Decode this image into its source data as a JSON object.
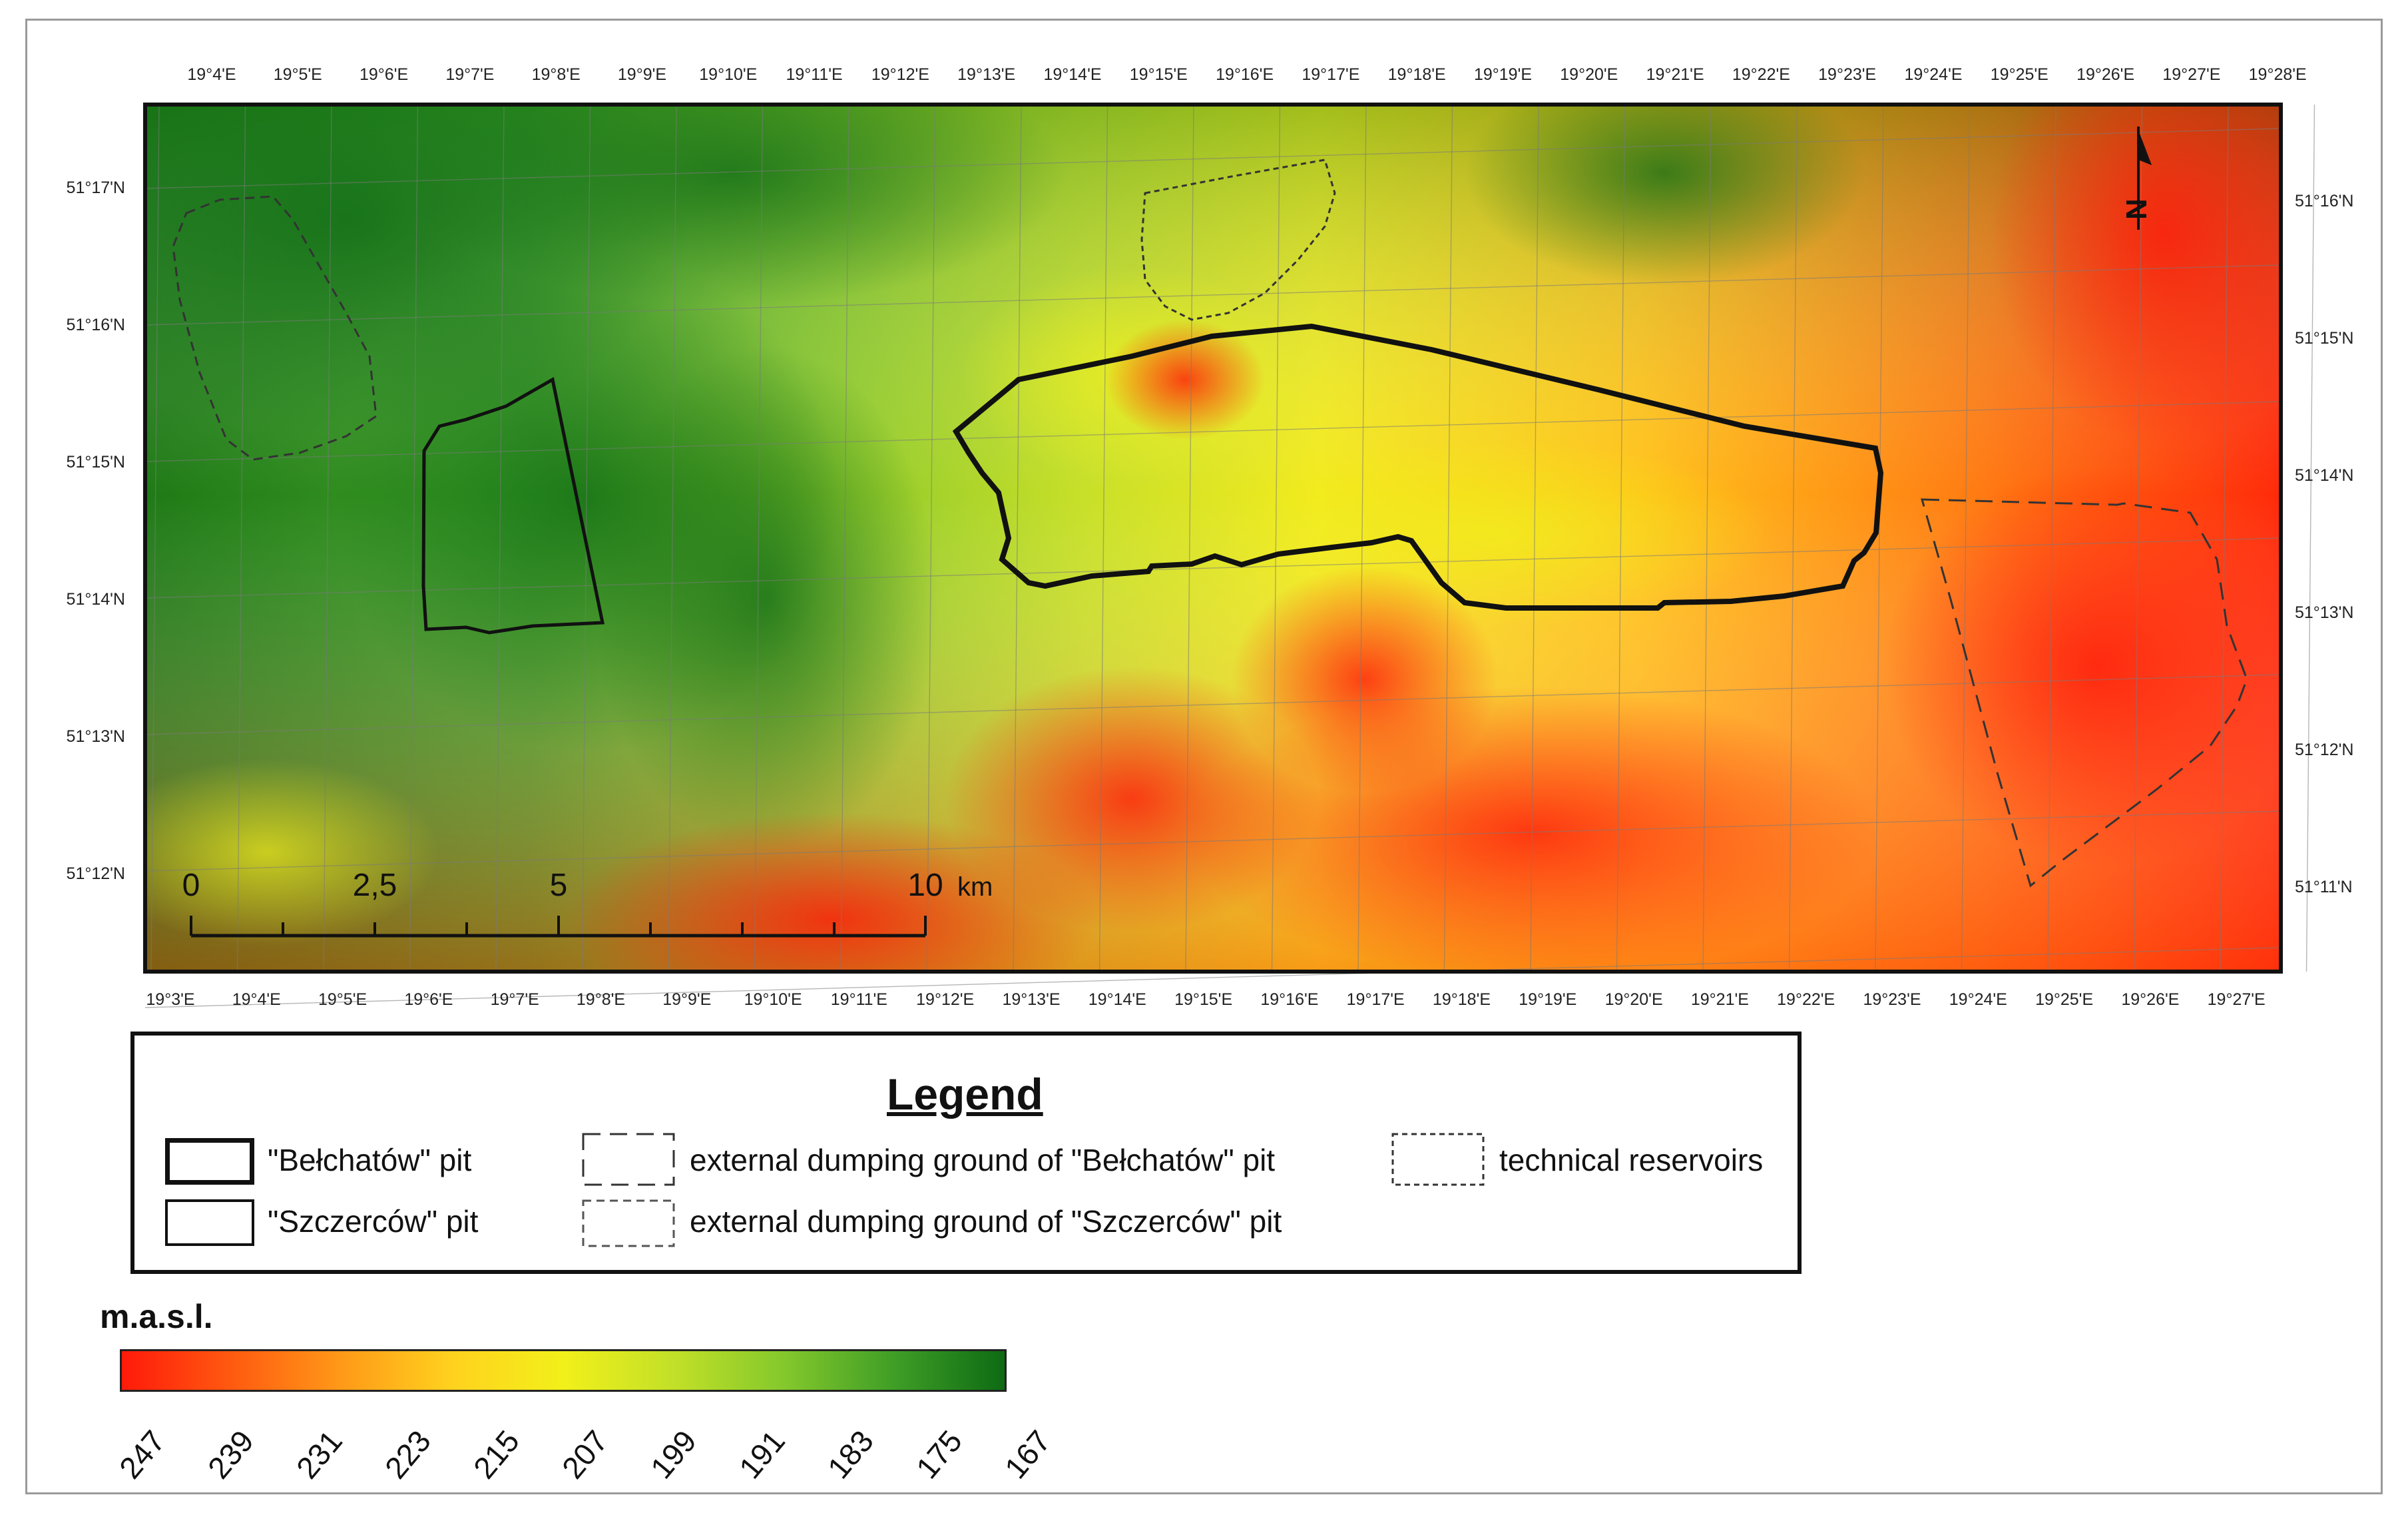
{
  "map": {
    "top_lon_labels": [
      "19°4'E",
      "19°5'E",
      "19°6'E",
      "19°7'E",
      "19°8'E",
      "19°9'E",
      "19°10'E",
      "19°11'E",
      "19°12'E",
      "19°13'E",
      "19°14'E",
      "19°15'E",
      "19°16'E",
      "19°17'E",
      "19°18'E",
      "19°19'E",
      "19°20'E",
      "19°21'E",
      "19°22'E",
      "19°23'E",
      "19°24'E",
      "19°25'E",
      "19°26'E",
      "19°27'E",
      "19°28'E"
    ],
    "bottom_lon_labels": [
      "19°3'E",
      "19°4'E",
      "19°5'E",
      "19°6'E",
      "19°7'E",
      "19°8'E",
      "19°9'E",
      "19°10'E",
      "19°11'E",
      "19°12'E",
      "19°13'E",
      "19°14'E",
      "19°15'E",
      "19°16'E",
      "19°17'E",
      "19°18'E",
      "19°19'E",
      "19°20'E",
      "19°21'E",
      "19°22'E",
      "19°23'E",
      "19°24'E",
      "19°25'E",
      "19°26'E",
      "19°27'E"
    ],
    "left_lat_labels": [
      "51°17'N",
      "51°16'N",
      "51°15'N",
      "51°14'N",
      "51°13'N",
      "51°12'N"
    ],
    "right_lat_labels": [
      "51°16'N",
      "51°15'N",
      "51°14'N",
      "51°13'N",
      "51°12'N",
      "51°11'N"
    ],
    "scale_bar": {
      "labels": [
        "0",
        "2,5",
        "5",
        "10"
      ],
      "unit": "km"
    },
    "north_arrow_label": "N"
  },
  "legend": {
    "title": "Legend",
    "items": [
      {
        "label": "\"Bełchatów\" pit"
      },
      {
        "label": "\"Szczerców\" pit"
      },
      {
        "label": "external dumping ground of \"Bełchatów\" pit"
      },
      {
        "label": "external dumping ground of \"Szczerców\" pit"
      },
      {
        "label": "technical reservoirs"
      }
    ]
  },
  "elevation_scale": {
    "title": "m.a.s.l.",
    "ticks": [
      "247",
      "239",
      "231",
      "223",
      "215",
      "207",
      "199",
      "191",
      "183",
      "175",
      "167"
    ],
    "colors": [
      "#ff1a0a",
      "#ff5a10",
      "#ff9a18",
      "#ffd21e",
      "#f2f01a",
      "#c2e028",
      "#84c82c",
      "#3f9e26",
      "#0e6b14"
    ]
  }
}
